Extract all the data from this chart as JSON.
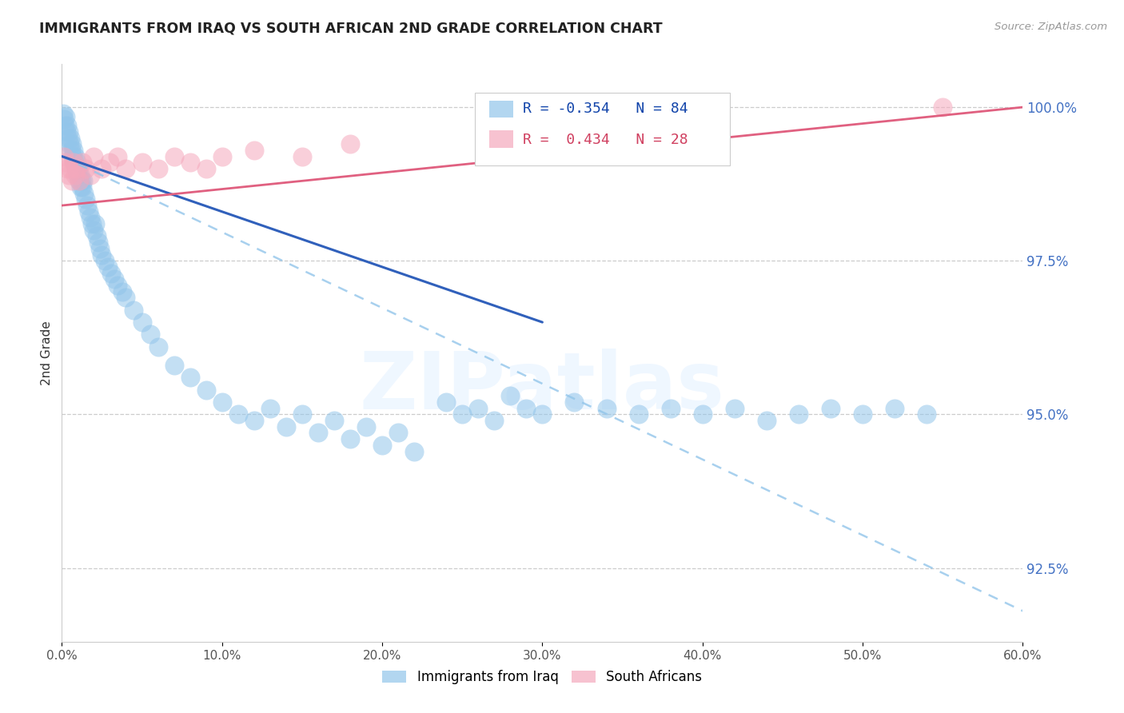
{
  "title": "IMMIGRANTS FROM IRAQ VS SOUTH AFRICAN 2ND GRADE CORRELATION CHART",
  "source": "Source: ZipAtlas.com",
  "xlabel_vals": [
    0.0,
    10.0,
    20.0,
    30.0,
    40.0,
    50.0,
    60.0
  ],
  "ylabel_vals": [
    92.5,
    95.0,
    97.5,
    100.0
  ],
  "ylabel_label": "2nd Grade",
  "legend_blue_r": "-0.354",
  "legend_blue_n": "84",
  "legend_pink_r": "0.434",
  "legend_pink_n": "28",
  "legend_label_blue": "Immigrants from Iraq",
  "legend_label_pink": "South Africans",
  "blue_color": "#92C5EA",
  "pink_color": "#F5A8BC",
  "trendline_blue_color": "#3060BB",
  "trendline_pink_color": "#E06080",
  "trendline_dash_color": "#92C5EA",
  "watermark": "ZIPatlas",
  "xmin": 0.0,
  "xmax": 60.0,
  "ymin": 91.3,
  "ymax": 100.7,
  "blue_x": [
    0.1,
    0.15,
    0.2,
    0.25,
    0.3,
    0.35,
    0.4,
    0.45,
    0.5,
    0.55,
    0.6,
    0.65,
    0.7,
    0.75,
    0.8,
    0.85,
    0.9,
    0.95,
    1.0,
    1.05,
    1.1,
    1.15,
    1.2,
    1.25,
    1.3,
    1.35,
    1.4,
    1.5,
    1.6,
    1.7,
    1.8,
    1.9,
    2.0,
    2.1,
    2.2,
    2.3,
    2.4,
    2.5,
    2.7,
    2.9,
    3.1,
    3.3,
    3.5,
    3.8,
    4.0,
    4.5,
    5.0,
    5.5,
    6.0,
    7.0,
    8.0,
    9.0,
    10.0,
    11.0,
    12.0,
    13.0,
    14.0,
    15.0,
    16.0,
    17.0,
    18.0,
    19.0,
    20.0,
    21.0,
    22.0,
    24.0,
    25.0,
    26.0,
    27.0,
    28.0,
    29.0,
    30.0,
    32.0,
    34.0,
    36.0,
    38.0,
    40.0,
    42.0,
    44.0,
    46.0,
    48.0,
    50.0,
    52.0,
    54.0
  ],
  "blue_y": [
    99.9,
    99.8,
    99.7,
    99.85,
    99.6,
    99.7,
    99.5,
    99.6,
    99.4,
    99.5,
    99.3,
    99.4,
    99.2,
    99.3,
    99.1,
    99.2,
    99.0,
    99.1,
    98.9,
    99.0,
    98.8,
    98.9,
    98.7,
    98.8,
    98.7,
    98.8,
    98.6,
    98.5,
    98.4,
    98.3,
    98.2,
    98.1,
    98.0,
    98.1,
    97.9,
    97.8,
    97.7,
    97.6,
    97.5,
    97.4,
    97.3,
    97.2,
    97.1,
    97.0,
    96.9,
    96.7,
    96.5,
    96.3,
    96.1,
    95.8,
    95.6,
    95.4,
    95.2,
    95.0,
    94.9,
    95.1,
    94.8,
    95.0,
    94.7,
    94.9,
    94.6,
    94.8,
    94.5,
    94.7,
    94.4,
    95.2,
    95.0,
    95.1,
    94.9,
    95.3,
    95.1,
    95.0,
    95.2,
    95.1,
    95.0,
    95.1,
    95.0,
    95.1,
    94.9,
    95.0,
    95.1,
    95.0,
    95.1,
    95.0
  ],
  "pink_x": [
    0.15,
    0.25,
    0.35,
    0.45,
    0.55,
    0.65,
    0.75,
    0.85,
    0.95,
    1.1,
    1.3,
    1.5,
    1.8,
    2.0,
    2.5,
    3.0,
    3.5,
    4.0,
    5.0,
    6.0,
    7.0,
    8.0,
    9.0,
    10.0,
    12.0,
    15.0,
    18.0,
    55.0
  ],
  "pink_y": [
    99.2,
    99.1,
    99.0,
    98.9,
    99.0,
    98.8,
    99.1,
    98.9,
    99.0,
    98.8,
    99.1,
    99.0,
    98.9,
    99.2,
    99.0,
    99.1,
    99.2,
    99.0,
    99.1,
    99.0,
    99.2,
    99.1,
    99.0,
    99.2,
    99.3,
    99.2,
    99.4,
    100.0
  ],
  "trendline_blue_x0": 0.0,
  "trendline_blue_y0": 99.2,
  "trendline_blue_x1": 30.0,
  "trendline_blue_y1": 96.5,
  "trendline_dash_x0": 0.0,
  "trendline_dash_y0": 99.2,
  "trendline_dash_x1": 60.0,
  "trendline_dash_y1": 91.8,
  "trendline_pink_x0": 0.0,
  "trendline_pink_y0": 98.4,
  "trendline_pink_x1": 60.0,
  "trendline_pink_y1": 100.0
}
